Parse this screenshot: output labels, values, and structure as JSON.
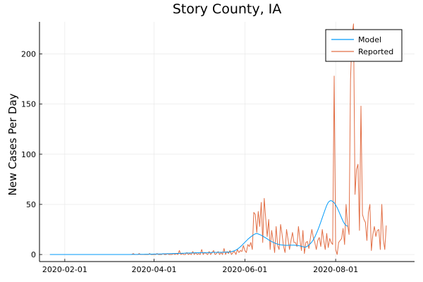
{
  "chart_data": {
    "type": "line",
    "title": "Story County, IA",
    "xlabel": "",
    "ylabel": "New Cases Per Day",
    "x_start_date": "2020-01-22",
    "xlim": [
      "2020-01-15",
      "2020-09-23"
    ],
    "ylim": [
      -7,
      232
    ],
    "x_ticks": [
      "2020-02-01",
      "2020-04-01",
      "2020-06-01",
      "2020-08-01"
    ],
    "y_ticks": [
      0,
      50,
      100,
      150,
      200
    ],
    "grid": true,
    "legend_position": "top-right",
    "series": [
      {
        "name": "Model",
        "color": "#009AFA",
        "values": [
          0,
          0,
          0,
          0,
          0,
          0,
          0,
          0,
          0,
          0,
          0,
          0,
          0,
          0,
          0,
          0,
          0,
          0,
          0,
          0,
          0,
          0,
          0,
          0,
          0,
          0,
          0,
          0,
          0,
          0,
          0,
          0,
          0,
          0,
          0,
          0,
          0,
          0,
          0,
          0,
          0,
          0,
          0,
          0,
          0,
          0,
          0,
          0,
          0,
          0,
          0,
          0,
          0,
          0,
          0,
          0.1,
          0.1,
          0.1,
          0.1,
          0.1,
          0.2,
          0.2,
          0.2,
          0.2,
          0.3,
          0.3,
          0.3,
          0.4,
          0.4,
          0.4,
          0.5,
          0.5,
          0.5,
          0.6,
          0.6,
          0.6,
          0.7,
          0.7,
          0.7,
          0.8,
          0.8,
          0.9,
          0.9,
          1.0,
          1.0,
          1.1,
          1.1,
          1.2,
          1.2,
          1.3,
          1.3,
          1.4,
          1.4,
          1.5,
          1.5,
          1.6,
          1.6,
          1.7,
          1.7,
          1.8,
          1.8,
          1.8,
          1.9,
          1.9,
          1.9,
          2.0,
          2.0,
          2.0,
          2.0,
          2.1,
          2.1,
          2.1,
          2.1,
          2.2,
          2.2,
          2.2,
          2.2,
          2.3,
          2.3,
          2.4,
          2.5,
          2.6,
          2.9,
          3.3,
          3.8,
          4.5,
          5.4,
          6.5,
          7.8,
          9.2,
          10.7,
          12.2,
          13.7,
          15.2,
          16.5,
          17.7,
          18.8,
          19.8,
          20.6,
          21.0,
          20.5,
          19.9,
          19.2,
          18.4,
          17.5,
          16.6,
          15.6,
          14.6,
          13.7,
          12.9,
          12.2,
          11.5,
          10.9,
          10.4,
          10.0,
          9.7,
          9.5,
          9.3,
          9.2,
          9.2,
          9.2,
          9.3,
          9.3,
          9.3,
          9.3,
          9.2,
          9.1,
          8.9,
          8.6,
          8.2,
          7.8,
          7.4,
          7.5,
          8.3,
          9.5,
          10.9,
          12.6,
          14.8,
          17.5,
          20.8,
          24.3,
          28.2,
          32.3,
          36.6,
          40.9,
          45.1,
          49.0,
          52.0,
          53.4,
          53.8,
          53.0,
          51.6,
          49.5,
          46.8,
          43.5,
          40.0,
          36.5,
          33.1,
          30.6,
          29.0,
          28.2
        ]
      },
      {
        "name": "Reported",
        "color": "#E26F46",
        "values": [
          0,
          0,
          0,
          0,
          0,
          0,
          0,
          0,
          0,
          0,
          0,
          0,
          0,
          0,
          0,
          0,
          0,
          0,
          0,
          0,
          0,
          0,
          0,
          0,
          0,
          0,
          0,
          0,
          0,
          0,
          0,
          0,
          0,
          0,
          0,
          0,
          0,
          0,
          0,
          0,
          0,
          0,
          0,
          0,
          0,
          0,
          0,
          0,
          0,
          0,
          0,
          0,
          0,
          0,
          0,
          0,
          1,
          0,
          0,
          0,
          1,
          0,
          0,
          0,
          0,
          0,
          0,
          1,
          0,
          0,
          0,
          0,
          1,
          0,
          0,
          0,
          1,
          0,
          0,
          1,
          0,
          0,
          0,
          1,
          0,
          1,
          0,
          4,
          0,
          1,
          0,
          0,
          2,
          0,
          1,
          0,
          3,
          0,
          2,
          0,
          1,
          0,
          5,
          0,
          2,
          1,
          0,
          3,
          0,
          2,
          4,
          0,
          1,
          3,
          0,
          2,
          0,
          6,
          0,
          3,
          1,
          4,
          0,
          2,
          3,
          0,
          5,
          2,
          4,
          3,
          9,
          4,
          2,
          10,
          8,
          12,
          5,
          42,
          40,
          22,
          43,
          28,
          52,
          12,
          56,
          36,
          18,
          35,
          5,
          24,
          14,
          2,
          28,
          9,
          5,
          30,
          20,
          8,
          2,
          25,
          15,
          5,
          14,
          22,
          12,
          12,
          8,
          28,
          15,
          4,
          24,
          1,
          12,
          13,
          6,
          16,
          25,
          17,
          12,
          5,
          14,
          17,
          8,
          25,
          14,
          5,
          21,
          7,
          16,
          12,
          10,
          178,
          5,
          0,
          12,
          14,
          16,
          26,
          10,
          50,
          30,
          20,
          175,
          218,
          230,
          60,
          85,
          90,
          24,
          148,
          40,
          35,
          32,
          14,
          42,
          50,
          4,
          20,
          28,
          18,
          24,
          25,
          5,
          50,
          15,
          5,
          29
        ]
      }
    ]
  }
}
